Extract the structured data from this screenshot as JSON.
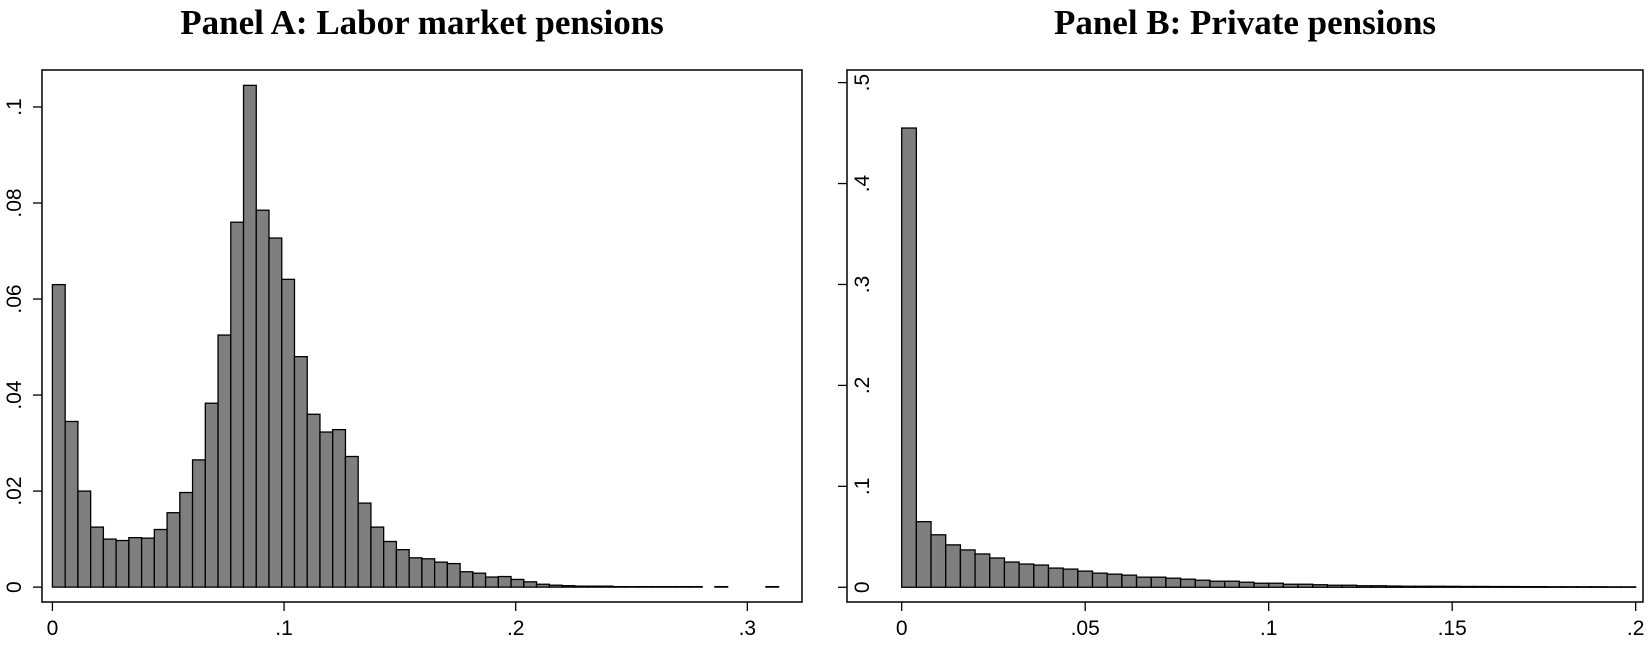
{
  "chart_data": [
    {
      "type": "histogram",
      "title": "Panel A: Labor market pensions",
      "bins": [
        0,
        0.0055,
        0.011,
        0.0165,
        0.022,
        0.0275,
        0.033,
        0.0385,
        0.044,
        0.0495,
        0.055,
        0.0605,
        0.066,
        0.0715,
        0.077,
        0.0825,
        0.088,
        0.0935,
        0.099,
        0.1045,
        0.11,
        0.1155,
        0.121,
        0.1265,
        0.132,
        0.1375,
        0.143,
        0.1485,
        0.154,
        0.1595,
        0.165,
        0.1705,
        0.176,
        0.1815,
        0.187,
        0.1925,
        0.198,
        0.2035,
        0.209,
        0.2145,
        0.22,
        0.2255,
        0.231,
        0.2365,
        0.242,
        0.2475,
        0.253,
        0.2585,
        0.264,
        0.2695,
        0.275,
        0.2805,
        0.286,
        0.2915,
        0.297,
        0.3025,
        0.308,
        0.3135,
        0.319
      ],
      "values": [
        0.063,
        0.0345,
        0.02,
        0.0125,
        0.01,
        0.0097,
        0.0103,
        0.0102,
        0.012,
        0.0155,
        0.0197,
        0.0265,
        0.0383,
        0.0525,
        0.076,
        0.1045,
        0.0785,
        0.0727,
        0.0641,
        0.048,
        0.036,
        0.0323,
        0.0328,
        0.0272,
        0.0175,
        0.0125,
        0.0095,
        0.0078,
        0.0061,
        0.0059,
        0.0052,
        0.0049,
        0.0032,
        0.0029,
        0.0021,
        0.0022,
        0.0016,
        0.0011,
        0.0006,
        0.0004,
        0.0003,
        0.0002,
        0.0002,
        0.0002,
        0.0001,
        0.0001,
        0.0001,
        0.0001,
        0.0001,
        0.0001,
        0.0001,
        0,
        0.0001,
        0,
        0,
        0,
        0.0001,
        0
      ],
      "color": "#7f7f7f",
      "edgecolor": "#000000",
      "xlim": [
        -0.0045,
        0.3236
      ],
      "ylim": [
        -0.0031,
        0.1077
      ],
      "xticks": [
        0,
        {
          "value": 0.1,
          "label": ".1"
        },
        {
          "value": 0.2,
          "label": ".2"
        },
        {
          "value": 0.3,
          "label": ".3"
        }
      ],
      "yticks": [
        0,
        {
          "value": 0.02,
          "label": ".02"
        },
        {
          "value": 0.04,
          "label": ".04"
        },
        {
          "value": 0.06,
          "label": ".06"
        },
        {
          "value": 0.08,
          "label": ".08"
        },
        {
          "value": 0.1,
          "label": ".1"
        }
      ]
    },
    {
      "type": "histogram",
      "title": "Panel B: Private pensions",
      "bins": [
        0,
        0.004,
        0.008,
        0.012,
        0.016,
        0.02,
        0.024,
        0.028,
        0.032,
        0.036,
        0.04,
        0.044,
        0.048,
        0.052,
        0.056,
        0.06,
        0.064,
        0.068,
        0.072,
        0.076,
        0.08,
        0.084,
        0.088,
        0.092,
        0.096,
        0.1,
        0.104,
        0.108,
        0.112,
        0.116,
        0.12,
        0.124,
        0.128,
        0.132,
        0.136,
        0.14,
        0.144,
        0.148,
        0.152,
        0.156,
        0.16,
        0.164,
        0.168,
        0.172,
        0.176,
        0.18,
        0.184,
        0.188,
        0.192,
        0.196,
        0.2
      ],
      "values": [
        0.455,
        0.065,
        0.052,
        0.042,
        0.037,
        0.033,
        0.029,
        0.025,
        0.023,
        0.022,
        0.019,
        0.018,
        0.016,
        0.014,
        0.013,
        0.012,
        0.01,
        0.01,
        0.009,
        0.008,
        0.007,
        0.006,
        0.006,
        0.005,
        0.004,
        0.004,
        0.003,
        0.003,
        0.0025,
        0.002,
        0.002,
        0.0015,
        0.0015,
        0.0012,
        0.001,
        0.001,
        0.001,
        0.0009,
        0.0008,
        0.0008,
        0.0007,
        0.0007,
        0.0006,
        0.0006,
        0.0005,
        0.0005,
        0.0005,
        0.0005,
        0.0004,
        0.0004
      ],
      "color": "#7f7f7f",
      "edgecolor": "#000000",
      "xlim": [
        -0.0149,
        0.202
      ],
      "ylim": [
        -0.0146,
        0.5125
      ],
      "xticks": [
        0,
        {
          "value": 0.05,
          "label": ".05"
        },
        {
          "value": 0.1,
          "label": ".1"
        },
        {
          "value": 0.15,
          "label": ".15"
        },
        {
          "value": 0.2,
          "label": ".2"
        }
      ],
      "yticks": [
        0,
        {
          "value": 0.1,
          "label": ".1"
        },
        {
          "value": 0.2,
          "label": ".2"
        },
        {
          "value": 0.3,
          "label": ".3"
        },
        {
          "value": 0.4,
          "label": ".4"
        },
        {
          "value": 0.5,
          "label": ".5"
        }
      ]
    }
  ]
}
